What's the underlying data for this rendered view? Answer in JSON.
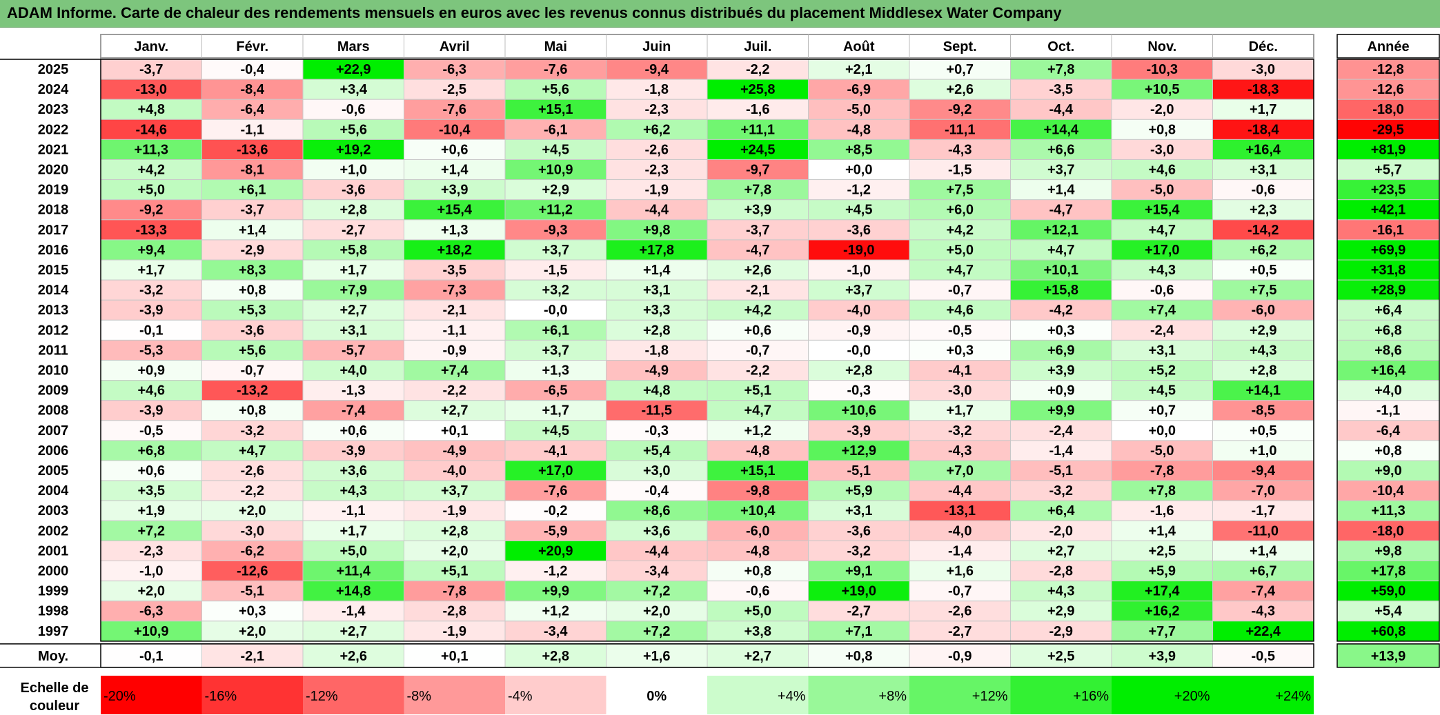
{
  "title": "ADAM Informe. Carte de chaleur des rendements mensuels en euros avec les revenus connus distribués du placement Middlesex Water Company",
  "chart_data": {
    "type": "heatmap",
    "title": "ADAM Informe. Carte de chaleur des rendements mensuels en euros avec les revenus connus distribués du placement Middlesex Water Company",
    "columns": [
      "Janv.",
      "Févr.",
      "Mars",
      "Avril",
      "Mai",
      "Juin",
      "Juil.",
      "Août",
      "Sept.",
      "Oct.",
      "Nov.",
      "Déc."
    ],
    "annual_header": "Année",
    "rows": [
      {
        "year": "2025",
        "values": [
          "-3,7",
          "-0,4",
          "+22,9",
          "-6,3",
          "-7,6",
          "-9,4",
          "-2,2",
          "+2,1",
          "+0,7",
          "+7,8",
          "-10,3",
          "-3,0"
        ],
        "annual": "-12,8"
      },
      {
        "year": "2024",
        "values": [
          "-13,0",
          "-8,4",
          "+3,4",
          "-2,5",
          "+5,6",
          "-1,8",
          "+25,8",
          "-6,9",
          "+2,6",
          "-3,5",
          "+10,5",
          "-18,3"
        ],
        "annual": "-12,6"
      },
      {
        "year": "2023",
        "values": [
          "+4,8",
          "-6,4",
          "-0,6",
          "-7,6",
          "+15,1",
          "-2,3",
          "-1,6",
          "-5,0",
          "-9,2",
          "-4,4",
          "-2,0",
          "+1,7"
        ],
        "annual": "-18,0"
      },
      {
        "year": "2022",
        "values": [
          "-14,6",
          "-1,1",
          "+5,6",
          "-10,4",
          "-6,1",
          "+6,2",
          "+11,1",
          "-4,8",
          "-11,1",
          "+14,4",
          "+0,8",
          "-18,4"
        ],
        "annual": "-29,5"
      },
      {
        "year": "2021",
        "values": [
          "+11,3",
          "-13,6",
          "+19,2",
          "+0,6",
          "+4,5",
          "-2,6",
          "+24,5",
          "+8,5",
          "-4,3",
          "+6,6",
          "-3,0",
          "+16,4"
        ],
        "annual": "+81,9"
      },
      {
        "year": "2020",
        "values": [
          "+4,2",
          "-8,1",
          "+1,0",
          "+1,4",
          "+10,9",
          "-2,3",
          "-9,7",
          "+0,0",
          "-1,5",
          "+3,7",
          "+4,6",
          "+3,1"
        ],
        "annual": "+5,7"
      },
      {
        "year": "2019",
        "values": [
          "+5,0",
          "+6,1",
          "-3,6",
          "+3,9",
          "+2,9",
          "-1,9",
          "+7,8",
          "-1,2",
          "+7,5",
          "+1,4",
          "-5,0",
          "-0,6"
        ],
        "annual": "+23,5"
      },
      {
        "year": "2018",
        "values": [
          "-9,2",
          "-3,7",
          "+2,8",
          "+15,4",
          "+11,2",
          "-4,4",
          "+3,9",
          "+4,5",
          "+6,0",
          "-4,7",
          "+15,4",
          "+2,3"
        ],
        "annual": "+42,1"
      },
      {
        "year": "2017",
        "values": [
          "-13,3",
          "+1,4",
          "-2,7",
          "+1,3",
          "-9,3",
          "+9,8",
          "-3,7",
          "-3,6",
          "+4,2",
          "+12,1",
          "+4,7",
          "-14,2"
        ],
        "annual": "-16,1"
      },
      {
        "year": "2016",
        "values": [
          "+9,4",
          "-2,9",
          "+5,8",
          "+18,2",
          "+3,7",
          "+17,8",
          "-4,7",
          "-19,0",
          "+5,0",
          "+4,7",
          "+17,0",
          "+6,2"
        ],
        "annual": "+69,9"
      },
      {
        "year": "2015",
        "values": [
          "+1,7",
          "+8,3",
          "+1,7",
          "-3,5",
          "-1,5",
          "+1,4",
          "+2,6",
          "-1,0",
          "+4,7",
          "+10,1",
          "+4,3",
          "+0,5"
        ],
        "annual": "+31,8"
      },
      {
        "year": "2014",
        "values": [
          "-3,2",
          "+0,8",
          "+7,9",
          "-7,3",
          "+3,2",
          "+3,1",
          "-2,1",
          "+3,7",
          "-0,7",
          "+15,8",
          "-0,6",
          "+7,5"
        ],
        "annual": "+28,9"
      },
      {
        "year": "2013",
        "values": [
          "-3,9",
          "+5,3",
          "+2,7",
          "-2,1",
          "-0,0",
          "+3,3",
          "+4,2",
          "-4,0",
          "+4,6",
          "-4,2",
          "+7,4",
          "-6,0"
        ],
        "annual": "+6,4"
      },
      {
        "year": "2012",
        "values": [
          "-0,1",
          "-3,6",
          "+3,1",
          "-1,1",
          "+6,1",
          "+2,8",
          "+0,6",
          "-0,9",
          "-0,5",
          "+0,3",
          "-2,4",
          "+2,9"
        ],
        "annual": "+6,8"
      },
      {
        "year": "2011",
        "values": [
          "-5,3",
          "+5,6",
          "-5,7",
          "-0,9",
          "+3,7",
          "-1,8",
          "-0,7",
          "-0,0",
          "+0,3",
          "+6,9",
          "+3,1",
          "+4,3"
        ],
        "annual": "+8,6"
      },
      {
        "year": "2010",
        "values": [
          "+0,9",
          "-0,7",
          "+4,0",
          "+7,4",
          "+1,3",
          "-4,9",
          "-2,2",
          "+2,8",
          "-4,1",
          "+3,9",
          "+5,2",
          "+2,8"
        ],
        "annual": "+16,4"
      },
      {
        "year": "2009",
        "values": [
          "+4,6",
          "-13,2",
          "-1,3",
          "-2,2",
          "-6,5",
          "+4,8",
          "+5,1",
          "-0,3",
          "-3,0",
          "+0,9",
          "+4,5",
          "+14,1"
        ],
        "annual": "+4,0"
      },
      {
        "year": "2008",
        "values": [
          "-3,9",
          "+0,8",
          "-7,4",
          "+2,7",
          "+1,7",
          "-11,5",
          "+4,7",
          "+10,6",
          "+1,7",
          "+9,9",
          "+0,7",
          "-8,5"
        ],
        "annual": "-1,1"
      },
      {
        "year": "2007",
        "values": [
          "-0,5",
          "-3,2",
          "+0,6",
          "+0,1",
          "+4,5",
          "-0,3",
          "+1,2",
          "-3,9",
          "-3,2",
          "-2,4",
          "+0,0",
          "+0,5"
        ],
        "annual": "-6,4"
      },
      {
        "year": "2006",
        "values": [
          "+6,8",
          "+4,7",
          "-3,9",
          "-4,9",
          "-4,1",
          "+5,4",
          "-4,8",
          "+12,9",
          "-4,3",
          "-1,4",
          "-5,0",
          "+1,0"
        ],
        "annual": "+0,8"
      },
      {
        "year": "2005",
        "values": [
          "+0,6",
          "-2,6",
          "+3,6",
          "-4,0",
          "+17,0",
          "+3,0",
          "+15,1",
          "-5,1",
          "+7,0",
          "-5,1",
          "-7,8",
          "-9,4"
        ],
        "annual": "+9,0"
      },
      {
        "year": "2004",
        "values": [
          "+3,5",
          "-2,2",
          "+4,3",
          "+3,7",
          "-7,6",
          "-0,4",
          "-9,8",
          "+5,9",
          "-4,4",
          "-3,2",
          "+7,8",
          "-7,0"
        ],
        "annual": "-10,4"
      },
      {
        "year": "2003",
        "values": [
          "+1,9",
          "+2,0",
          "-1,1",
          "-1,9",
          "-0,2",
          "+8,6",
          "+10,4",
          "+3,1",
          "-13,1",
          "+6,4",
          "-1,6",
          "-1,7"
        ],
        "annual": "+11,3"
      },
      {
        "year": "2002",
        "values": [
          "+7,2",
          "-3,0",
          "+1,7",
          "+2,8",
          "-5,9",
          "+3,6",
          "-6,0",
          "-3,6",
          "-4,0",
          "-2,0",
          "+1,4",
          "-11,0"
        ],
        "annual": "-18,0"
      },
      {
        "year": "2001",
        "values": [
          "-2,3",
          "-6,2",
          "+5,0",
          "+2,0",
          "+20,9",
          "-4,4",
          "-4,8",
          "-3,2",
          "-1,4",
          "+2,7",
          "+2,5",
          "+1,4"
        ],
        "annual": "+9,8"
      },
      {
        "year": "2000",
        "values": [
          "-1,0",
          "-12,6",
          "+11,4",
          "+5,1",
          "-1,2",
          "-3,4",
          "+0,8",
          "+9,1",
          "+1,6",
          "-2,8",
          "+5,9",
          "+6,7"
        ],
        "annual": "+17,8"
      },
      {
        "year": "1999",
        "values": [
          "+2,0",
          "-5,1",
          "+14,8",
          "-7,8",
          "+9,9",
          "+7,2",
          "-0,6",
          "+19,0",
          "-0,7",
          "+4,3",
          "+17,4",
          "-7,4"
        ],
        "annual": "+59,0"
      },
      {
        "year": "1998",
        "values": [
          "-6,3",
          "+0,3",
          "-1,4",
          "-2,8",
          "+1,2",
          "+2,0",
          "+5,0",
          "-2,7",
          "-2,6",
          "+2,9",
          "+16,2",
          "-4,3"
        ],
        "annual": "+5,4"
      },
      {
        "year": "1997",
        "values": [
          "+10,9",
          "+2,0",
          "+2,7",
          "-1,9",
          "-3,4",
          "+7,2",
          "+3,8",
          "+7,1",
          "-2,7",
          "-2,9",
          "+7,7",
          "+22,4"
        ],
        "annual": "+60,8"
      }
    ],
    "average": {
      "label": "Moy.",
      "values": [
        "-0,1",
        "-2,1",
        "+2,6",
        "+0,1",
        "+2,8",
        "+1,6",
        "+2,7",
        "+0,8",
        "-0,9",
        "+2,5",
        "+3,9",
        "-0,5"
      ],
      "annual": "+13,9"
    },
    "scale": {
      "label_line1": "Echelle de",
      "label_line2": "couleur",
      "stops": [
        {
          "label": "-20%",
          "value": -20
        },
        {
          "label": "-16%",
          "value": -16
        },
        {
          "label": "-12%",
          "value": -12
        },
        {
          "label": "-8%",
          "value": -8
        },
        {
          "label": "-4%",
          "value": -4
        },
        {
          "label": "0%",
          "value": 0
        },
        {
          "label": "+4%",
          "value": 4
        },
        {
          "label": "+8%",
          "value": 8
        },
        {
          "label": "+12%",
          "value": 12
        },
        {
          "label": "+16%",
          "value": 16
        },
        {
          "label": "+20%",
          "value": 20
        },
        {
          "label": "+24%",
          "value": 24
        }
      ]
    },
    "colors": {
      "negative_max": "#ff0000",
      "neutral": "#ffffff",
      "positive_max": "#00ee00",
      "title_bar": "#7dc57d"
    }
  }
}
